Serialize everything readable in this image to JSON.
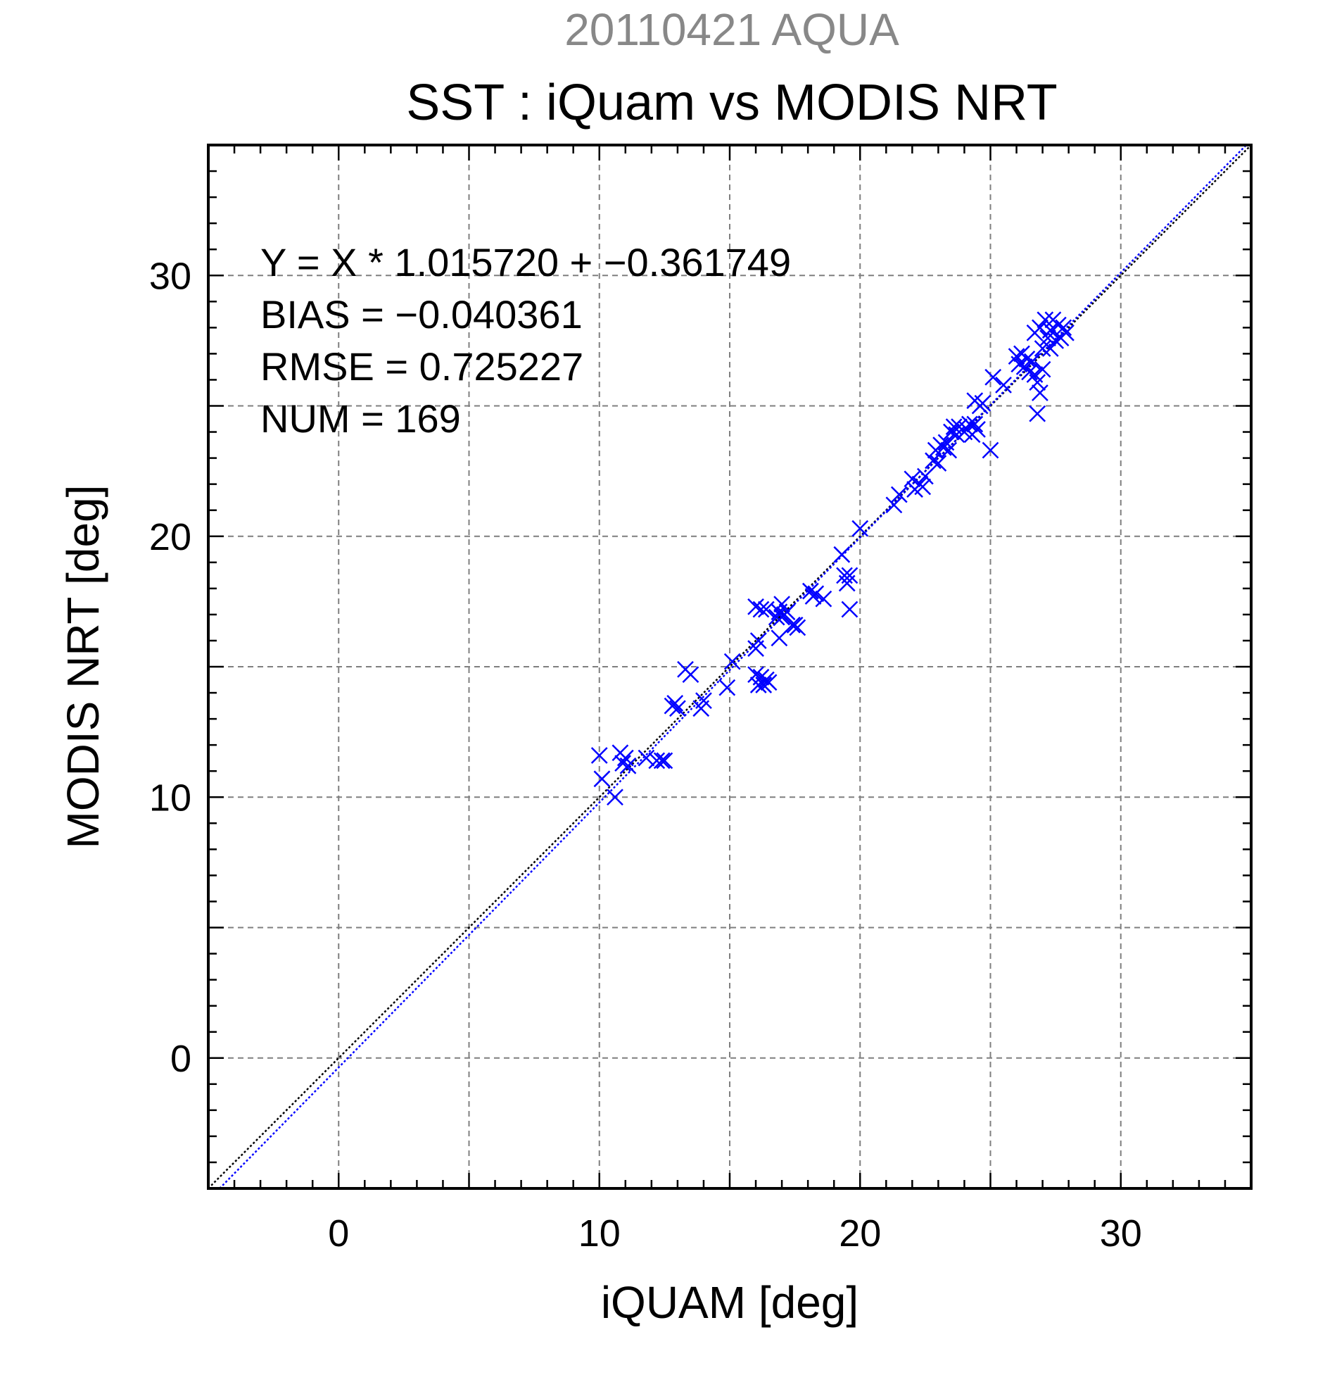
{
  "chart_data": {
    "type": "scatter",
    "supertitle": "20110421 AQUA",
    "title": "SST : iQuam vs MODIS NRT",
    "xlabel": "iQUAM [deg]",
    "ylabel": "MODIS NRT [deg]",
    "xlim": [
      -5,
      35
    ],
    "ylim": [
      -5,
      35
    ],
    "xticks": [
      0,
      10,
      20,
      30
    ],
    "yticks": [
      0,
      10,
      20,
      30
    ],
    "xtick_labels": [
      "0",
      "10",
      "20",
      "30"
    ],
    "ytick_labels": [
      "0",
      "10",
      "20",
      "30"
    ],
    "grid": true,
    "stats": {
      "equation": "Y = X * 1.015720 + −0.361749",
      "bias": "BIAS = −0.040361",
      "rmse": "RMSE = 0.725227",
      "num": "NUM = 169"
    },
    "lines": [
      {
        "kind": "one-to-one",
        "slope": 1.0,
        "intercept": 0.0,
        "color": "#000000"
      },
      {
        "kind": "regression",
        "slope": 1.01572,
        "intercept": -0.361749,
        "color": "#0000ff"
      }
    ],
    "marker": {
      "shape": "x",
      "color": "#0000ff"
    },
    "points": [
      [
        10.0,
        11.6
      ],
      [
        10.1,
        10.7
      ],
      [
        10.6,
        10.0
      ],
      [
        10.8,
        11.7
      ],
      [
        10.9,
        11.3
      ],
      [
        11.1,
        11.2
      ],
      [
        11.0,
        11.5
      ],
      [
        11.8,
        11.5
      ],
      [
        12.2,
        11.4
      ],
      [
        12.4,
        11.4
      ],
      [
        12.5,
        11.4
      ],
      [
        12.8,
        13.5
      ],
      [
        12.9,
        13.6
      ],
      [
        13.0,
        13.4
      ],
      [
        13.3,
        14.9
      ],
      [
        13.5,
        14.7
      ],
      [
        13.9,
        13.4
      ],
      [
        14.0,
        13.7
      ],
      [
        14.9,
        14.2
      ],
      [
        15.1,
        15.2
      ],
      [
        16.0,
        14.7
      ],
      [
        16.1,
        14.3
      ],
      [
        16.2,
        14.6
      ],
      [
        16.3,
        14.3
      ],
      [
        16.4,
        14.5
      ],
      [
        16.5,
        14.4
      ],
      [
        16.0,
        17.3
      ],
      [
        16.2,
        17.2
      ],
      [
        16.4,
        17.2
      ],
      [
        16.1,
        16.0
      ],
      [
        16.0,
        15.7
      ],
      [
        16.9,
        17.1
      ],
      [
        17.0,
        16.9
      ],
      [
        17.1,
        17.0
      ],
      [
        17.2,
        17.1
      ],
      [
        17.0,
        17.4
      ],
      [
        16.8,
        16.9
      ],
      [
        16.9,
        16.1
      ],
      [
        17.4,
        16.6
      ],
      [
        17.5,
        16.6
      ],
      [
        17.6,
        16.5
      ],
      [
        18.1,
        17.9
      ],
      [
        18.2,
        17.7
      ],
      [
        18.3,
        17.8
      ],
      [
        18.6,
        17.6
      ],
      [
        19.3,
        19.3
      ],
      [
        19.4,
        18.5
      ],
      [
        19.5,
        18.2
      ],
      [
        19.6,
        18.5
      ],
      [
        19.6,
        17.2
      ],
      [
        20.0,
        20.3
      ],
      [
        21.3,
        21.2
      ],
      [
        21.5,
        21.6
      ],
      [
        22.0,
        22.2
      ],
      [
        22.1,
        21.8
      ],
      [
        22.3,
        22.0
      ],
      [
        22.5,
        22.3
      ],
      [
        22.4,
        21.9
      ],
      [
        22.8,
        22.9
      ],
      [
        22.9,
        23.3
      ],
      [
        23.0,
        22.8
      ],
      [
        23.1,
        23.5
      ],
      [
        23.2,
        23.4
      ],
      [
        23.3,
        23.6
      ],
      [
        23.4,
        23.3
      ],
      [
        23.5,
        24.0
      ],
      [
        23.6,
        24.2
      ],
      [
        23.7,
        23.9
      ],
      [
        23.8,
        24.2
      ],
      [
        24.0,
        24.0
      ],
      [
        24.1,
        24.1
      ],
      [
        24.2,
        24.3
      ],
      [
        24.3,
        23.9
      ],
      [
        24.4,
        24.3
      ],
      [
        24.5,
        24.1
      ],
      [
        24.4,
        25.2
      ],
      [
        24.6,
        25.0
      ],
      [
        24.7,
        25.1
      ],
      [
        25.0,
        23.3
      ],
      [
        25.1,
        26.1
      ],
      [
        25.5,
        25.8
      ],
      [
        26.0,
        26.9
      ],
      [
        26.1,
        26.6
      ],
      [
        26.2,
        27.0
      ],
      [
        26.3,
        26.5
      ],
      [
        26.4,
        26.8
      ],
      [
        26.5,
        26.3
      ],
      [
        26.6,
        26.7
      ],
      [
        26.7,
        26.2
      ],
      [
        26.8,
        25.9
      ],
      [
        26.9,
        25.5
      ],
      [
        26.8,
        24.7
      ],
      [
        27.0,
        26.4
      ],
      [
        26.7,
        27.8
      ],
      [
        26.9,
        28.0
      ],
      [
        27.0,
        27.2
      ],
      [
        27.1,
        28.3
      ],
      [
        27.2,
        27.6
      ],
      [
        27.3,
        27.9
      ],
      [
        27.4,
        28.3
      ],
      [
        27.5,
        27.5
      ],
      [
        27.6,
        28.1
      ],
      [
        27.7,
        27.6
      ],
      [
        27.8,
        28.0
      ],
      [
        27.9,
        27.8
      ],
      [
        27.3,
        27.2
      ]
    ]
  }
}
